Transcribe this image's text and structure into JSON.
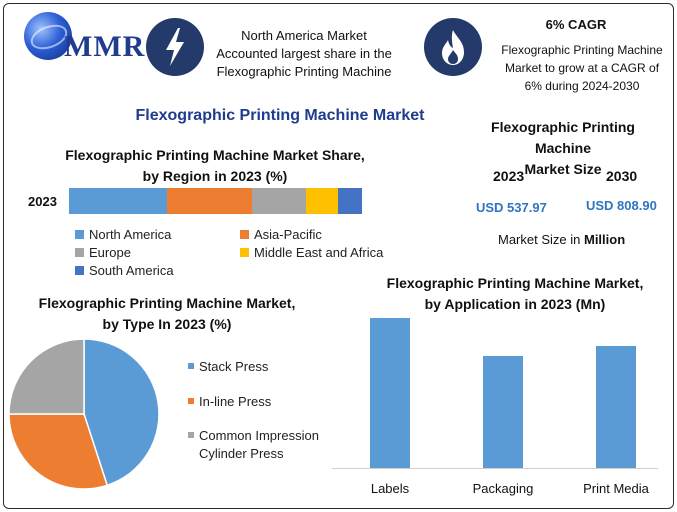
{
  "header": {
    "logo_text": "MMR",
    "highlight1": [
      "North America Market",
      "Accounted largest share in the",
      "Flexographic Printing Machine"
    ],
    "cagr_title": "6% CAGR",
    "highlight2": [
      "Flexographic Printing Machine",
      "Market to grow at a CAGR of",
      "6% during 2024-2030"
    ],
    "icon1": "lightning-icon",
    "icon2": "flame-icon"
  },
  "main_title": "Flexographic Printing Machine Market",
  "market_size": {
    "title": [
      "Flexographic Printing Machine",
      "Market Size"
    ],
    "year1": "2023",
    "year2": "2030",
    "value1": "USD 537.97",
    "value2": "USD 808.90",
    "caption_prefix": "Market Size in ",
    "caption_bold": "Million"
  },
  "colors": {
    "blue": "#5b9bd5",
    "orange": "#ed7d31",
    "gray": "#a5a5a5",
    "yellow": "#ffc000",
    "darkblue": "#4472c4"
  },
  "chart_data": [
    {
      "type": "bar",
      "orientation": "horizontal-stacked",
      "title": [
        "Flexographic Printing Machine Market Share,",
        "by Region in 2023 (%)"
      ],
      "categories": [
        "2023"
      ],
      "series": [
        {
          "name": "North America",
          "values": [
            33
          ]
        },
        {
          "name": "Asia-Pacific",
          "values": [
            29
          ]
        },
        {
          "name": "Europe",
          "values": [
            18
          ]
        },
        {
          "name": "Middle East and Africa",
          "values": [
            11
          ]
        },
        {
          "name": "South America",
          "values": [
            8
          ]
        }
      ],
      "legend": "bottom"
    },
    {
      "type": "pie",
      "title": [
        "Flexographic Printing Machine Market,",
        "by Type In 2023 (%)"
      ],
      "labels": [
        "Stack Press",
        "In-line Press",
        "Common Impression Cylinder Press"
      ],
      "legend_lines": [
        [
          "Stack Press"
        ],
        [
          "In-line Press"
        ],
        [
          "Common Impression",
          "Cylinder Press"
        ]
      ],
      "values": [
        45,
        30,
        25
      ],
      "legend": "right"
    },
    {
      "type": "bar",
      "title": [
        "Flexographic Printing Machine Market,",
        "by Application in 2023 (Mn)"
      ],
      "categories": [
        "Labels",
        "Packaging",
        "Print Media"
      ],
      "values": [
        150,
        112,
        122
      ],
      "ylim": [
        0,
        160
      ]
    }
  ]
}
